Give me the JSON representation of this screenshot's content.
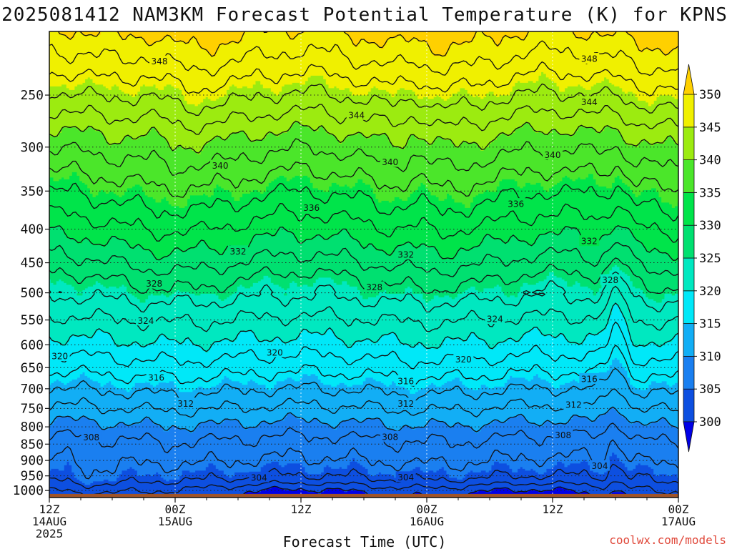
{
  "chart_data": {
    "type": "heatmap",
    "title": "2025081412 NAM3KM Forecast Potential Temperature (K) for KPNS",
    "xlabel": "Forecast Time (UTC)",
    "ylabel": "",
    "x_ticks": [
      {
        "hour": 0,
        "line1": "12Z",
        "line2": "14AUG",
        "line3": "2025"
      },
      {
        "hour": 12,
        "line1": "00Z",
        "line2": "15AUG",
        "line3": ""
      },
      {
        "hour": 24,
        "line1": "12Z",
        "line2": "",
        "line3": ""
      },
      {
        "hour": 36,
        "line1": "00Z",
        "line2": "16AUG",
        "line3": ""
      },
      {
        "hour": 48,
        "line1": "12Z",
        "line2": "",
        "line3": ""
      },
      {
        "hour": 60,
        "line1": "00Z",
        "line2": "17AUG",
        "line3": ""
      }
    ],
    "xlim": [
      0,
      60
    ],
    "y_axis": "pressure (hPa), log scale, inverted",
    "ylim": [
      1025,
      200
    ],
    "y_ticks": [
      250,
      300,
      350,
      400,
      450,
      500,
      550,
      600,
      650,
      700,
      750,
      800,
      850,
      900,
      950,
      1000
    ],
    "y_tick_labels": [
      "250",
      "300",
      "350",
      "400",
      "450",
      "500",
      "550",
      "600",
      "650",
      "700",
      "750",
      "800",
      "850",
      "900",
      "950",
      "1000"
    ],
    "grid": true,
    "colorbar": {
      "levels": [
        300,
        305,
        310,
        315,
        320,
        325,
        330,
        335,
        340,
        345,
        350
      ],
      "labels": [
        "300",
        "305",
        "310",
        "315",
        "320",
        "325",
        "330",
        "335",
        "340",
        "345",
        "350"
      ],
      "colors": [
        "#0000e6",
        "#0d4fe0",
        "#1a7ff0",
        "#12aef5",
        "#00e8f8",
        "#00e8c0",
        "#00e070",
        "#00e44a",
        "#4be62a",
        "#9ceb10",
        "#f0f000",
        "#ffd000"
      ],
      "extend": "both"
    },
    "isentropes_K": [
      300,
      302,
      304,
      306,
      308,
      310,
      312,
      314,
      316,
      318,
      320,
      322,
      324,
      326,
      328,
      330,
      332,
      334,
      336,
      338,
      340,
      342,
      344,
      346,
      348,
      350
    ],
    "isentrope_base_pressure_hPa": {
      "302": 998,
      "304": 962,
      "306": 900,
      "308": 833,
      "310": 789,
      "312": 748,
      "314": 706,
      "316": 667,
      "318": 628,
      "320": 589,
      "322": 548,
      "324": 512,
      "326": 478,
      "328": 450,
      "330": 420,
      "332": 392,
      "334": 363,
      "336": 336,
      "338": 312,
      "340": 290,
      "342": 272,
      "344": 255,
      "346": 238,
      "348": 222
    },
    "contour_labels": [
      {
        "text": "348",
        "hour": 10.5,
        "p": 222
      },
      {
        "text": "348",
        "hour": 51.5,
        "p": 220
      },
      {
        "text": "344",
        "hour": 29.3,
        "p": 268
      },
      {
        "text": "344",
        "hour": 51.5,
        "p": 256
      },
      {
        "text": "340",
        "hour": 16.3,
        "p": 320
      },
      {
        "text": "340",
        "hour": 32.5,
        "p": 316
      },
      {
        "text": "340",
        "hour": 48.0,
        "p": 308
      },
      {
        "text": "336",
        "hour": 25.0,
        "p": 371
      },
      {
        "text": "336",
        "hour": 44.5,
        "p": 366
      },
      {
        "text": "332",
        "hour": 18.0,
        "p": 432
      },
      {
        "text": "332",
        "hour": 34.0,
        "p": 437
      },
      {
        "text": "332",
        "hour": 51.5,
        "p": 417
      },
      {
        "text": "328",
        "hour": 10.0,
        "p": 484
      },
      {
        "text": "328",
        "hour": 31.0,
        "p": 490
      },
      {
        "text": "328",
        "hour": 53.5,
        "p": 478
      },
      {
        "text": "324",
        "hour": 9.2,
        "p": 551
      },
      {
        "text": "324",
        "hour": 42.5,
        "p": 548
      },
      {
        "text": "320",
        "hour": 1.0,
        "p": 624
      },
      {
        "text": "320",
        "hour": 21.5,
        "p": 616
      },
      {
        "text": "320",
        "hour": 39.5,
        "p": 631
      },
      {
        "text": "316",
        "hour": 10.2,
        "p": 673
      },
      {
        "text": "316",
        "hour": 34.0,
        "p": 681
      },
      {
        "text": "316",
        "hour": 51.5,
        "p": 676
      },
      {
        "text": "312",
        "hour": 13.0,
        "p": 737
      },
      {
        "text": "312",
        "hour": 34.0,
        "p": 737
      },
      {
        "text": "312",
        "hour": 50.0,
        "p": 740
      },
      {
        "text": "308",
        "hour": 4.0,
        "p": 829
      },
      {
        "text": "308",
        "hour": 32.5,
        "p": 828
      },
      {
        "text": "308",
        "hour": 49.0,
        "p": 823
      },
      {
        "text": "304",
        "hour": 20.0,
        "p": 955
      },
      {
        "text": "304",
        "hour": 34.0,
        "p": 954
      },
      {
        "text": "304",
        "hour": 52.5,
        "p": 917
      }
    ],
    "terrain_below_hPa": 1012,
    "terrain_color": "#a05428"
  },
  "credit": "coolwx.com/models"
}
